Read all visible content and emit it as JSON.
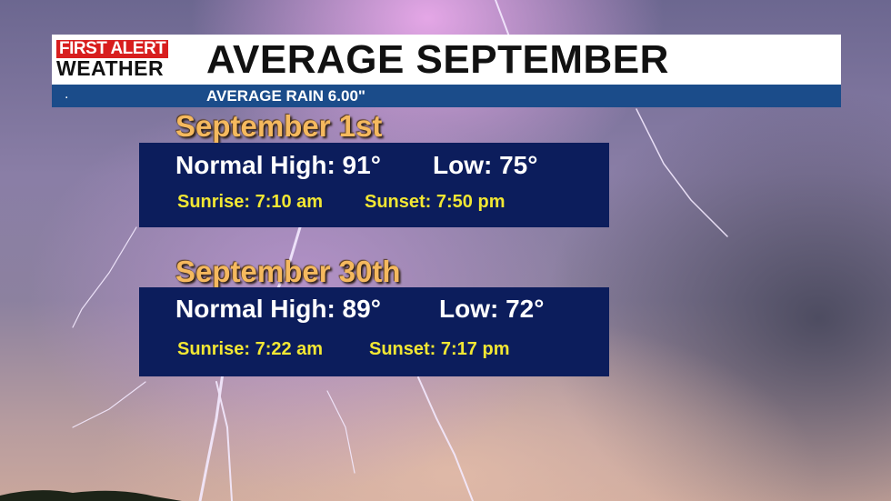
{
  "logo": {
    "line1": "FIRST ALERT",
    "line2": "WEATHER"
  },
  "header": {
    "title": "AVERAGE SEPTEMBER",
    "dot": ".",
    "subtitle": "AVERAGE RAIN 6.00\""
  },
  "days": [
    {
      "heading": "September 1st",
      "high": "Normal High: 91°",
      "low": "Low: 75°",
      "sunrise": "Sunrise: 7:10 am",
      "sunset": "Sunset: 7:50 pm"
    },
    {
      "heading": "September 30th",
      "high": "Normal High: 89°",
      "low": "Low: 72°",
      "sunrise": "Sunrise: 7:22 am",
      "sunset": "Sunset: 7:17 pm"
    }
  ],
  "colors": {
    "header_bar": "#ffffff",
    "sub_bar": "#1b4c8a",
    "logo_red": "#d81e1e",
    "panel": "#0c1d5c",
    "heading": "#f5b95e",
    "sun_times": "#f2e733"
  }
}
